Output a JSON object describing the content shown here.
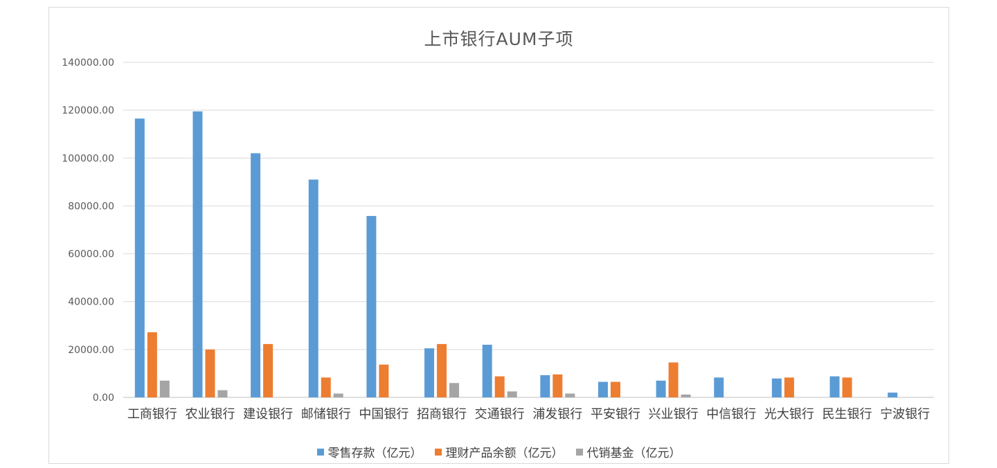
{
  "chart_data": {
    "type": "bar",
    "title": "上市银行AUM子项",
    "categories": [
      "工商银行",
      "农业银行",
      "建设银行",
      "邮储银行",
      "中国银行",
      "招商银行",
      "交通银行",
      "浦发银行",
      "平安银行",
      "兴业银行",
      "中信银行",
      "光大银行",
      "民生银行",
      "宁波银行"
    ],
    "series": [
      {
        "name": "零售存款（亿元）",
        "color": "#5b9bd5",
        "values": [
          116500,
          119500,
          102000,
          91000,
          75800,
          20500,
          22000,
          9300,
          6500,
          7000,
          8300,
          7900,
          8800,
          2000
        ]
      },
      {
        "name": "理财产品余额（亿元）",
        "color": "#ed7d31",
        "values": [
          27200,
          20000,
          22300,
          8300,
          13700,
          22300,
          8800,
          9600,
          6500,
          14600,
          0,
          8300,
          8300,
          0
        ]
      },
      {
        "name": "代销基金（亿元）",
        "color": "#a5a5a5",
        "values": [
          7000,
          3000,
          0,
          1600,
          0,
          6000,
          2500,
          1600,
          0,
          1200,
          0,
          0,
          0,
          0
        ]
      }
    ],
    "ylim": [
      0,
      140000
    ],
    "yticks": [
      "0.00",
      "20000.00",
      "40000.00",
      "60000.00",
      "80000.00",
      "100000.00",
      "120000.00",
      "140000.00"
    ],
    "grid": true,
    "legend_position": "bottom"
  }
}
